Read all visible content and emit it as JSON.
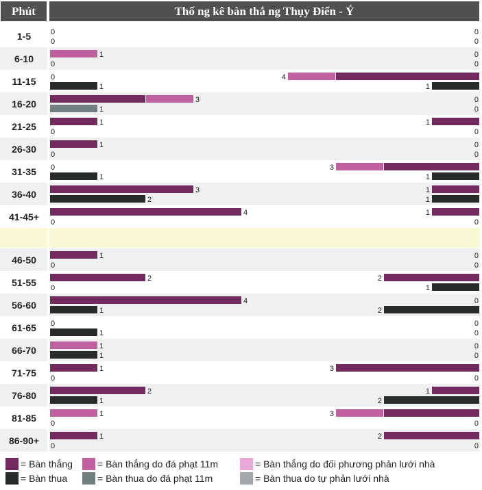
{
  "header": {
    "minute_label": "Phút",
    "title": "Thố ng kê bàn thắ ng Thụy Điển - Ý"
  },
  "colors": {
    "goal": "#722b5f",
    "goal_penalty": "#c0609f",
    "goal_own_goal": "#e8a8d8",
    "conceded": "#272b2a",
    "conceded_penalty": "#717f80",
    "conceded_own_goal": "#a2a5aa",
    "row_even": "#ffffff",
    "row_odd": "#f0f0f0",
    "halftime": "#f8f8d4"
  },
  "chart_data": {
    "type": "bar",
    "title": "Thố ng kê bàn thắ ng Thụy Điển - Ý",
    "xlabel": "Phút",
    "categories": [
      "1-5",
      "6-10",
      "11-15",
      "16-20",
      "21-25",
      "26-30",
      "31-35",
      "36-40",
      "41-45+",
      "46-50",
      "51-55",
      "56-60",
      "61-65",
      "66-70",
      "71-75",
      "76-80",
      "81-85",
      "86-90+"
    ],
    "halftime_after": "41-45+",
    "unit_max": 9,
    "teams": [
      {
        "side": "left",
        "rows": [
          {
            "scored": {
              "total": 0,
              "segments": []
            },
            "conceded": {
              "total": 0,
              "segments": []
            }
          },
          {
            "scored": {
              "total": 1,
              "segments": [
                {
                  "type": "goal_penalty",
                  "count": 1
                }
              ]
            },
            "conceded": {
              "total": 0,
              "segments": []
            }
          },
          {
            "scored": {
              "total": 0,
              "segments": []
            },
            "conceded": {
              "total": 1,
              "segments": [
                {
                  "type": "conceded",
                  "count": 1
                }
              ]
            }
          },
          {
            "scored": {
              "total": 3,
              "segments": [
                {
                  "type": "goal",
                  "count": 2
                },
                {
                  "type": "goal_penalty",
                  "count": 1
                }
              ]
            },
            "conceded": {
              "total": 1,
              "segments": [
                {
                  "type": "conceded_penalty",
                  "count": 1
                }
              ]
            }
          },
          {
            "scored": {
              "total": 1,
              "segments": [
                {
                  "type": "goal",
                  "count": 1
                }
              ]
            },
            "conceded": {
              "total": 0,
              "segments": []
            }
          },
          {
            "scored": {
              "total": 1,
              "segments": [
                {
                  "type": "goal",
                  "count": 1
                }
              ]
            },
            "conceded": {
              "total": 0,
              "segments": []
            }
          },
          {
            "scored": {
              "total": 0,
              "segments": []
            },
            "conceded": {
              "total": 1,
              "segments": [
                {
                  "type": "conceded",
                  "count": 1
                }
              ]
            }
          },
          {
            "scored": {
              "total": 3,
              "segments": [
                {
                  "type": "goal",
                  "count": 3
                }
              ]
            },
            "conceded": {
              "total": 2,
              "segments": [
                {
                  "type": "conceded",
                  "count": 2
                }
              ]
            }
          },
          {
            "scored": {
              "total": 4,
              "segments": [
                {
                  "type": "goal",
                  "count": 4
                }
              ]
            },
            "conceded": {
              "total": 0,
              "segments": []
            }
          },
          {
            "scored": {
              "total": 1,
              "segments": [
                {
                  "type": "goal",
                  "count": 1
                }
              ]
            },
            "conceded": {
              "total": 0,
              "segments": []
            }
          },
          {
            "scored": {
              "total": 2,
              "segments": [
                {
                  "type": "goal",
                  "count": 2
                }
              ]
            },
            "conceded": {
              "total": 0,
              "segments": []
            }
          },
          {
            "scored": {
              "total": 4,
              "segments": [
                {
                  "type": "goal",
                  "count": 4
                }
              ]
            },
            "conceded": {
              "total": 1,
              "segments": [
                {
                  "type": "conceded",
                  "count": 1
                }
              ]
            }
          },
          {
            "scored": {
              "total": 0,
              "segments": []
            },
            "conceded": {
              "total": 1,
              "segments": [
                {
                  "type": "conceded",
                  "count": 1
                }
              ]
            }
          },
          {
            "scored": {
              "total": 1,
              "segments": [
                {
                  "type": "goal_penalty",
                  "count": 1
                }
              ]
            },
            "conceded": {
              "total": 1,
              "segments": [
                {
                  "type": "conceded",
                  "count": 1
                }
              ]
            }
          },
          {
            "scored": {
              "total": 1,
              "segments": [
                {
                  "type": "goal",
                  "count": 1
                }
              ]
            },
            "conceded": {
              "total": 0,
              "segments": []
            }
          },
          {
            "scored": {
              "total": 2,
              "segments": [
                {
                  "type": "goal",
                  "count": 2
                }
              ]
            },
            "conceded": {
              "total": 1,
              "segments": [
                {
                  "type": "conceded",
                  "count": 1
                }
              ]
            }
          },
          {
            "scored": {
              "total": 1,
              "segments": [
                {
                  "type": "goal_penalty",
                  "count": 1
                }
              ]
            },
            "conceded": {
              "total": 0,
              "segments": []
            }
          },
          {
            "scored": {
              "total": 1,
              "segments": [
                {
                  "type": "goal",
                  "count": 1
                }
              ]
            },
            "conceded": {
              "total": 0,
              "segments": []
            }
          }
        ]
      },
      {
        "side": "right",
        "rows": [
          {
            "scored": {
              "total": 0,
              "segments": []
            },
            "conceded": {
              "total": 0,
              "segments": []
            }
          },
          {
            "scored": {
              "total": 0,
              "segments": []
            },
            "conceded": {
              "total": 0,
              "segments": []
            }
          },
          {
            "scored": {
              "total": 4,
              "segments": [
                {
                  "type": "goal",
                  "count": 3
                },
                {
                  "type": "goal_penalty",
                  "count": 1
                }
              ]
            },
            "conceded": {
              "total": 1,
              "segments": [
                {
                  "type": "conceded",
                  "count": 1
                }
              ]
            }
          },
          {
            "scored": {
              "total": 0,
              "segments": []
            },
            "conceded": {
              "total": 0,
              "segments": []
            }
          },
          {
            "scored": {
              "total": 1,
              "segments": [
                {
                  "type": "goal",
                  "count": 1
                }
              ]
            },
            "conceded": {
              "total": 0,
              "segments": []
            }
          },
          {
            "scored": {
              "total": 0,
              "segments": []
            },
            "conceded": {
              "total": 0,
              "segments": []
            }
          },
          {
            "scored": {
              "total": 3,
              "segments": [
                {
                  "type": "goal",
                  "count": 2
                },
                {
                  "type": "goal_penalty",
                  "count": 1
                }
              ]
            },
            "conceded": {
              "total": 1,
              "segments": [
                {
                  "type": "conceded",
                  "count": 1
                }
              ]
            }
          },
          {
            "scored": {
              "total": 1,
              "segments": [
                {
                  "type": "goal",
                  "count": 1
                }
              ]
            },
            "conceded": {
              "total": 1,
              "segments": [
                {
                  "type": "conceded",
                  "count": 1
                }
              ]
            }
          },
          {
            "scored": {
              "total": 1,
              "segments": [
                {
                  "type": "goal",
                  "count": 1
                }
              ]
            },
            "conceded": {
              "total": 0,
              "segments": []
            }
          },
          {
            "scored": {
              "total": 0,
              "segments": []
            },
            "conceded": {
              "total": 0,
              "segments": []
            }
          },
          {
            "scored": {
              "total": 2,
              "segments": [
                {
                  "type": "goal",
                  "count": 2
                }
              ]
            },
            "conceded": {
              "total": 1,
              "segments": [
                {
                  "type": "conceded",
                  "count": 1
                }
              ]
            }
          },
          {
            "scored": {
              "total": 0,
              "segments": []
            },
            "conceded": {
              "total": 2,
              "segments": [
                {
                  "type": "conceded",
                  "count": 2
                }
              ]
            }
          },
          {
            "scored": {
              "total": 0,
              "segments": []
            },
            "conceded": {
              "total": 0,
              "segments": []
            }
          },
          {
            "scored": {
              "total": 0,
              "segments": []
            },
            "conceded": {
              "total": 0,
              "segments": []
            }
          },
          {
            "scored": {
              "total": 3,
              "segments": [
                {
                  "type": "goal",
                  "count": 3
                }
              ]
            },
            "conceded": {
              "total": 0,
              "segments": []
            }
          },
          {
            "scored": {
              "total": 1,
              "segments": [
                {
                  "type": "goal",
                  "count": 1
                }
              ]
            },
            "conceded": {
              "total": 2,
              "segments": [
                {
                  "type": "conceded",
                  "count": 2
                }
              ]
            }
          },
          {
            "scored": {
              "total": 3,
              "segments": [
                {
                  "type": "goal",
                  "count": 2
                },
                {
                  "type": "goal_penalty",
                  "count": 1
                }
              ]
            },
            "conceded": {
              "total": 0,
              "segments": []
            }
          },
          {
            "scored": {
              "total": 2,
              "segments": [
                {
                  "type": "goal",
                  "count": 2
                }
              ]
            },
            "conceded": {
              "total": 0,
              "segments": []
            }
          }
        ]
      }
    ]
  },
  "legend": [
    {
      "type": "goal",
      "label": "= Bàn thắng"
    },
    {
      "type": "goal_penalty",
      "label": "= Bàn thắng do đá phạt 11m"
    },
    {
      "type": "goal_own_goal",
      "label": "= Bàn thắng do đối phương phản lưới nhà"
    },
    {
      "type": "conceded",
      "label": "= Bàn thua"
    },
    {
      "type": "conceded_penalty",
      "label": "= Bàn thua do đá phạt 11m"
    },
    {
      "type": "conceded_own_goal",
      "label": "= Bàn thua do tự phản lưới nhà"
    }
  ]
}
